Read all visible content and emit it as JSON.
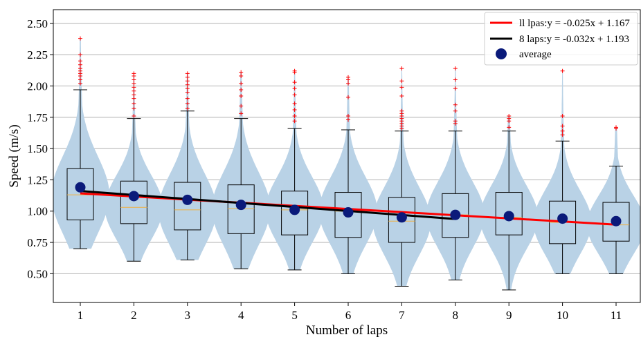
{
  "chart_data": {
    "type": "violin",
    "xlabel": "Number of laps",
    "ylabel": "Speed (m/s)",
    "categories": [
      "1",
      "2",
      "3",
      "4",
      "5",
      "6",
      "7",
      "8",
      "9",
      "10",
      "11"
    ],
    "ylim": [
      0.27,
      2.61
    ],
    "yticks": [
      0.5,
      0.75,
      1.0,
      1.25,
      1.5,
      1.75,
      2.0,
      2.25,
      2.5
    ],
    "ytick_labels": [
      "0.50",
      "0.75",
      "1.00",
      "1.25",
      "1.50",
      "1.75",
      "2.00",
      "2.25",
      "2.50"
    ],
    "grid": "horizontal",
    "legend_position": "top-right",
    "boxes": [
      {
        "x": 1,
        "q1": 0.93,
        "median": 1.13,
        "q3": 1.34,
        "whisker_low": 0.7,
        "whisker_high": 1.97,
        "mean": 1.19,
        "viol_min": 0.7,
        "viol_max": 2.38
      },
      {
        "x": 2,
        "q1": 0.9,
        "median": 1.03,
        "q3": 1.24,
        "whisker_low": 0.6,
        "whisker_high": 1.74,
        "mean": 1.12,
        "viol_min": 0.6,
        "viol_max": 2.1
      },
      {
        "x": 3,
        "q1": 0.85,
        "median": 1.01,
        "q3": 1.23,
        "whisker_low": 0.61,
        "whisker_high": 1.8,
        "mean": 1.09,
        "viol_min": 0.61,
        "viol_max": 2.1
      },
      {
        "x": 4,
        "q1": 0.82,
        "median": 1.02,
        "q3": 1.21,
        "whisker_low": 0.54,
        "whisker_high": 1.74,
        "mean": 1.05,
        "viol_min": 0.54,
        "viol_max": 2.11
      },
      {
        "x": 5,
        "q1": 0.81,
        "median": 1.01,
        "q3": 1.16,
        "whisker_low": 0.53,
        "whisker_high": 1.66,
        "mean": 1.01,
        "viol_min": 0.53,
        "viol_max": 2.12
      },
      {
        "x": 6,
        "q1": 0.79,
        "median": 1.0,
        "q3": 1.15,
        "whisker_low": 0.5,
        "whisker_high": 1.65,
        "mean": 0.99,
        "viol_min": 0.5,
        "viol_max": 2.07
      },
      {
        "x": 7,
        "q1": 0.75,
        "median": 0.92,
        "q3": 1.11,
        "whisker_low": 0.4,
        "whisker_high": 1.64,
        "mean": 0.95,
        "viol_min": 0.4,
        "viol_max": 2.14
      },
      {
        "x": 8,
        "q1": 0.79,
        "median": 0.97,
        "q3": 1.14,
        "whisker_low": 0.45,
        "whisker_high": 1.64,
        "mean": 0.97,
        "viol_min": 0.45,
        "viol_max": 2.14
      },
      {
        "x": 9,
        "q1": 0.81,
        "median": 0.95,
        "q3": 1.15,
        "whisker_low": 0.37,
        "whisker_high": 1.64,
        "mean": 0.96,
        "viol_min": 0.37,
        "viol_max": 1.76
      },
      {
        "x": 10,
        "q1": 0.74,
        "median": 0.91,
        "q3": 1.08,
        "whisker_low": 0.5,
        "whisker_high": 1.56,
        "mean": 0.94,
        "viol_min": 0.5,
        "viol_max": 2.12
      },
      {
        "x": 11,
        "q1": 0.76,
        "median": 0.89,
        "q3": 1.07,
        "whisker_low": 0.5,
        "whisker_high": 1.36,
        "mean": 0.92,
        "viol_min": 0.5,
        "viol_max": 1.67
      }
    ],
    "outliers": [
      {
        "x": 1,
        "values": [
          2.02,
          2.05,
          2.08,
          2.1,
          2.12,
          2.14,
          2.17,
          2.2,
          2.25,
          2.38
        ]
      },
      {
        "x": 2,
        "values": [
          1.76,
          1.82,
          1.86,
          1.9,
          1.93,
          1.96,
          1.99,
          2.02,
          2.05,
          2.08,
          2.1
        ]
      },
      {
        "x": 3,
        "values": [
          1.82,
          1.86,
          1.9,
          1.95,
          1.98,
          2.01,
          2.04,
          2.07,
          2.1
        ]
      },
      {
        "x": 4,
        "values": [
          1.78,
          1.84,
          1.92,
          1.97,
          2.02,
          2.08,
          2.11
        ]
      },
      {
        "x": 5,
        "values": [
          1.72,
          1.76,
          1.81,
          1.86,
          1.93,
          1.98,
          2.03,
          2.11,
          2.12
        ]
      },
      {
        "x": 6,
        "values": [
          1.73,
          1.76,
          1.91,
          2.02,
          2.05,
          2.07
        ]
      },
      {
        "x": 7,
        "values": [
          1.66,
          1.68,
          1.7,
          1.72,
          1.74,
          1.76,
          1.78,
          1.8,
          1.92,
          1.99,
          2.04,
          2.14
        ]
      },
      {
        "x": 8,
        "values": [
          1.7,
          1.72,
          1.8,
          1.85,
          1.98,
          2.05,
          2.14
        ]
      },
      {
        "x": 9,
        "values": [
          1.67,
          1.72,
          1.74,
          1.76
        ]
      },
      {
        "x": 10,
        "values": [
          1.61,
          1.64,
          1.68,
          1.76,
          2.12
        ]
      },
      {
        "x": 11,
        "values": [
          1.66,
          1.67
        ]
      }
    ],
    "series": [
      {
        "name": "ll lpas:y = -0.025x + 1.167",
        "kind": "line",
        "color": "#ff0000",
        "slope": -0.025,
        "intercept": 1.167,
        "x_range": [
          1,
          11
        ]
      },
      {
        "name": "8 laps:y = -0.032x + 1.193",
        "kind": "line",
        "color": "#000000",
        "slope": -0.032,
        "intercept": 1.193,
        "x_range": [
          1,
          8
        ]
      },
      {
        "name": "average",
        "kind": "scatter",
        "color": "#0a1a7a"
      }
    ],
    "colors": {
      "violin": "#b9d2e6",
      "box": "#000000",
      "median": "#f0b040",
      "outlier": "#ff0000",
      "grid": "#b0b0b0"
    }
  }
}
